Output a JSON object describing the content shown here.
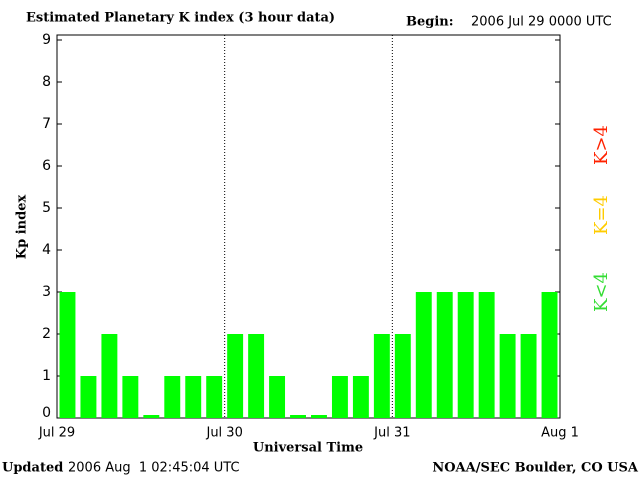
{
  "chart_data": {
    "type": "bar",
    "title": "Estimated Planetary K index (3 hour data)",
    "begin_label": "Begin:",
    "begin_value": "2006 Jul 29 0000 UTC",
    "ylabel": "Kp index",
    "xlabel": "Universal Time",
    "updated_label": "Updated",
    "updated_value": "2006 Aug  1 02:45:04 UTC",
    "source": "NOAA/SEC Boulder, CO USA",
    "categories": [
      null,
      null,
      null,
      null,
      null,
      null,
      null,
      null,
      null,
      null,
      null,
      null,
      null,
      null,
      null,
      null,
      null,
      null,
      null,
      null,
      null,
      null,
      null,
      null
    ],
    "values": [
      3,
      1,
      2,
      1,
      0,
      1,
      1,
      1,
      2,
      2,
      1,
      0,
      0,
      1,
      1,
      2,
      2,
      3,
      3,
      3,
      3,
      2,
      2,
      3
    ],
    "color": "#00ff00",
    "day_labels": [
      "Jul 29",
      "Jul 30",
      "Jul 31",
      "Aug 1"
    ],
    "ylim": [
      0,
      9
    ],
    "yticks": [
      0,
      1,
      2,
      3,
      4,
      5,
      6,
      7,
      8,
      9
    ],
    "legend": [
      {
        "name": "K<4",
        "color": "#33dd33"
      },
      {
        "name": "K=4",
        "color": "#ffcc00"
      },
      {
        "name": "K>4",
        "color": "#ff2200"
      }
    ]
  }
}
